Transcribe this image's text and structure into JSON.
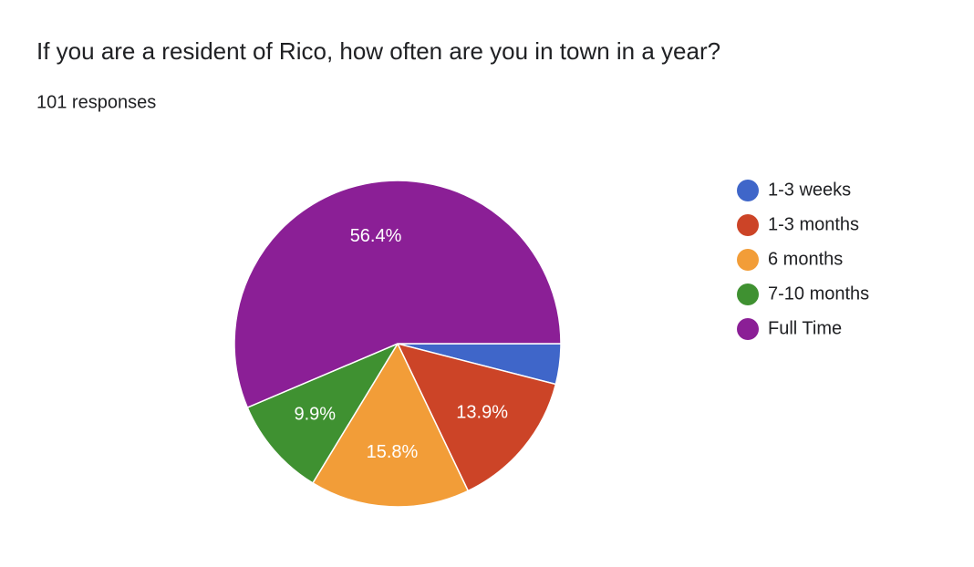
{
  "chart_data": {
    "type": "pie",
    "title": "If you are a resident of Rico, how often are you in town in a year?",
    "subtitle": "101 responses",
    "categories": [
      "1-3 weeks",
      "1-3 months",
      "6 months",
      "7-10 months",
      "Full Time"
    ],
    "values": [
      4.0,
      13.9,
      15.8,
      9.9,
      56.4
    ],
    "value_labels": [
      null,
      "13.9%",
      "15.8%",
      "9.9%",
      "56.4%"
    ],
    "colors": [
      "#3f66c9",
      "#cc4427",
      "#f29d38",
      "#3f9131",
      "#8b1f96"
    ],
    "legend": "right"
  }
}
